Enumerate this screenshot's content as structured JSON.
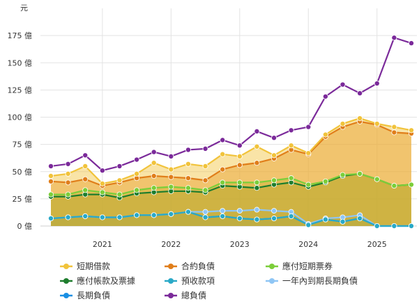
{
  "chart_data": {
    "type": "area",
    "unit_label": "元",
    "y_unit_suffix": "億",
    "yticks": [
      0,
      25,
      50,
      75,
      100,
      125,
      150,
      175
    ],
    "ylim": [
      0,
      200
    ],
    "x_year_labels": [
      "2021",
      "2022",
      "2023",
      "2024",
      "2025"
    ],
    "year_tick_index": [
      3,
      7,
      11,
      15,
      19
    ],
    "series": [
      {
        "name": "長期負債",
        "kind": "area",
        "color": "#1a8fe3",
        "values": [
          7,
          8,
          9,
          8,
          8,
          10,
          10,
          11,
          13,
          8,
          9,
          7,
          6,
          7,
          9,
          1,
          6,
          4,
          7,
          0,
          0,
          0
        ]
      },
      {
        "name": "一年內到期長期負債",
        "kind": "area",
        "color": "#8fc6f5",
        "values": [
          7,
          8,
          9,
          8,
          8,
          10,
          10,
          11,
          13,
          13,
          14,
          14,
          15,
          14,
          13,
          2,
          7,
          8,
          10,
          0,
          0,
          0
        ]
      },
      {
        "name": "預收款項",
        "kind": "area",
        "color": "#2aa9c7",
        "values": [
          7,
          8,
          9,
          8,
          8,
          10,
          10,
          11,
          13,
          8,
          9,
          7,
          6,
          7,
          9,
          1,
          6,
          4,
          7,
          0,
          0,
          0
        ]
      },
      {
        "name": "應付帳款及票據",
        "kind": "area",
        "color": "#1e7d2d",
        "values": [
          27,
          27,
          29,
          29,
          26,
          30,
          31,
          32,
          32,
          31,
          37,
          36,
          35,
          38,
          40,
          36,
          40,
          46,
          48,
          43,
          37,
          38
        ]
      },
      {
        "name": "應付短期票券",
        "kind": "area",
        "color": "#7cce3a",
        "values": [
          29,
          29,
          33,
          31,
          29,
          33,
          35,
          36,
          35,
          33,
          40,
          40,
          40,
          42,
          44,
          38,
          41,
          47,
          48,
          43,
          37,
          38
        ]
      },
      {
        "name": "合約負債",
        "kind": "area",
        "color": "#e07e1a",
        "values": [
          41,
          40,
          43,
          37,
          40,
          44,
          46,
          45,
          44,
          42,
          52,
          56,
          58,
          62,
          70,
          66,
          82,
          91,
          96,
          93,
          86,
          85
        ]
      },
      {
        "name": "短期借款",
        "kind": "area",
        "color": "#f1c33b",
        "values": [
          46,
          48,
          55,
          39,
          42,
          48,
          58,
          52,
          57,
          55,
          66,
          64,
          73,
          65,
          74,
          67,
          84,
          94,
          99,
          94,
          91,
          88
        ]
      },
      {
        "name": "總負債",
        "kind": "line",
        "color": "#7b2a9a",
        "values": [
          55,
          57,
          65,
          51,
          55,
          61,
          68,
          64,
          70,
          71,
          79,
          74,
          87,
          81,
          88,
          91,
          119,
          130,
          122,
          131,
          173,
          168
        ]
      }
    ]
  },
  "legend": {
    "rows": [
      [
        "短期借款",
        "合約負債",
        "應付短期票券"
      ],
      [
        "應付帳款及票據",
        "預收款項",
        "一年內到期長期負債"
      ],
      [
        "長期負債",
        "總負債"
      ]
    ]
  }
}
